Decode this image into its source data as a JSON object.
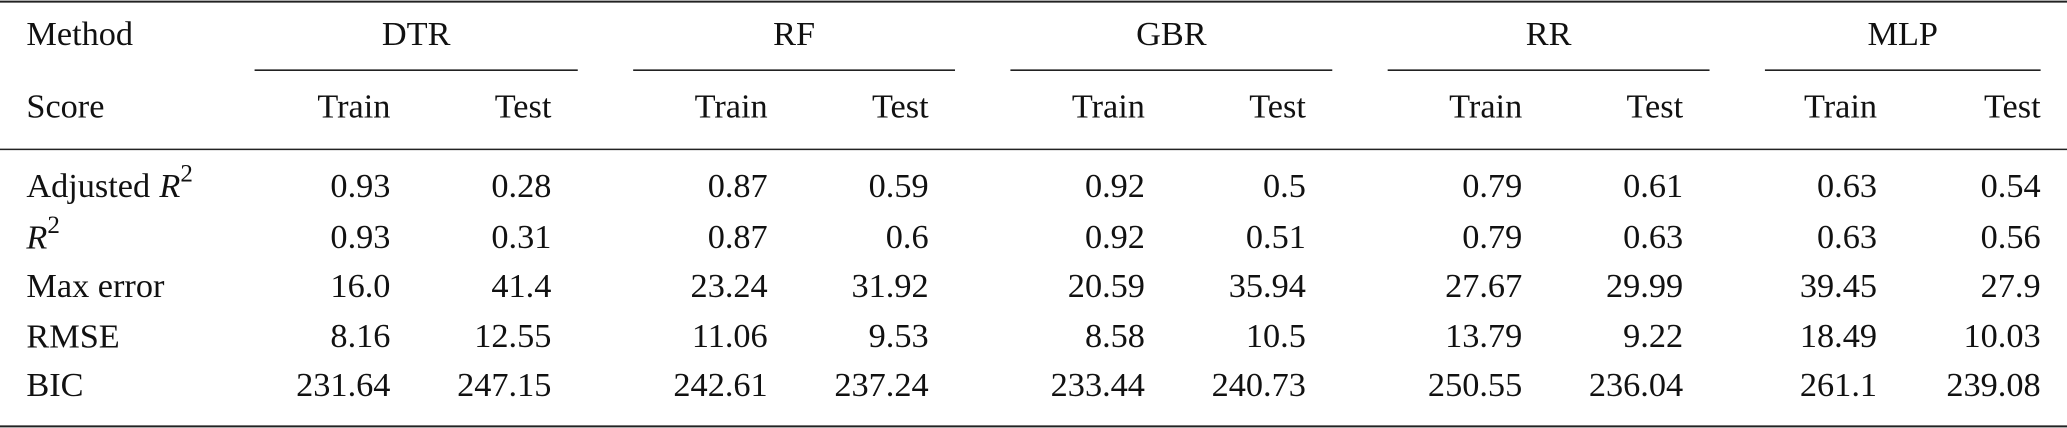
{
  "header": {
    "row_label": "Method",
    "methods": [
      "DTR",
      "RF",
      "GBR",
      "RR",
      "MLP"
    ]
  },
  "subheader": {
    "row_label": "Score",
    "splits": [
      "Train",
      "Test"
    ]
  },
  "rows": [
    {
      "label": "Adjusted",
      "symbol": "R",
      "superscript": "2",
      "values": [
        "0.93",
        "0.28",
        "0.87",
        "0.59",
        "0.92",
        "0.5",
        "0.79",
        "0.61",
        "0.63",
        "0.54"
      ]
    },
    {
      "symbol": "R",
      "superscript": "2",
      "values": [
        "0.93",
        "0.31",
        "0.87",
        "0.6",
        "0.92",
        "0.51",
        "0.79",
        "0.63",
        "0.63",
        "0.56"
      ]
    },
    {
      "label": "Max error",
      "values": [
        "16.0",
        "41.4",
        "23.24",
        "31.92",
        "20.59",
        "35.94",
        "27.67",
        "29.99",
        "39.45",
        "27.9"
      ]
    },
    {
      "label": "RMSE",
      "values": [
        "8.16",
        "12.55",
        "11.06",
        "9.53",
        "8.58",
        "10.5",
        "13.79",
        "9.22",
        "18.49",
        "10.03"
      ]
    },
    {
      "label": "BIC",
      "values": [
        "231.64",
        "247.15",
        "242.61",
        "237.24",
        "233.44",
        "240.73",
        "250.55",
        "236.04",
        "261.1",
        "239.08"
      ]
    }
  ]
}
